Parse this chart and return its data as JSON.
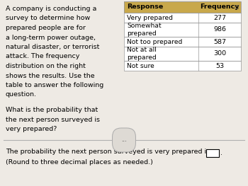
{
  "bg_color": "#c8c5c0",
  "main_bg": "#eeeae4",
  "bottom_bg": "#eeeae4",
  "table_header_bg": "#c8a84b",
  "table_row_bg": "#ffffff",
  "table_border_color": "#999999",
  "left_text_lines": [
    "A company is conducting a",
    "survey to determine how",
    "prepared people are for",
    "a long-term power outage,",
    "natural disaster, or terrorist",
    "attack. The frequency",
    "distribution on the right",
    "shows the results. Use the",
    "table to answer the following",
    "question."
  ],
  "question_lines": [
    "What is the probability that",
    "the next person surveyed is",
    "very prepared?"
  ],
  "table_headers": [
    "Response",
    "Frequency"
  ],
  "table_rows": [
    [
      "Very prepared",
      "277"
    ],
    [
      "Somewhat\nprepared",
      "986"
    ],
    [
      "Not too prepared",
      "587"
    ],
    [
      "Not at all\nprepared",
      "300"
    ],
    [
      "Not sure",
      "53"
    ]
  ],
  "bottom_line1": "The probability the next person surveyed is very prepared is",
  "bottom_line2": "(Round to three decimal places as needed.)",
  "text_fontsize": 6.8,
  "table_fontsize": 6.8
}
